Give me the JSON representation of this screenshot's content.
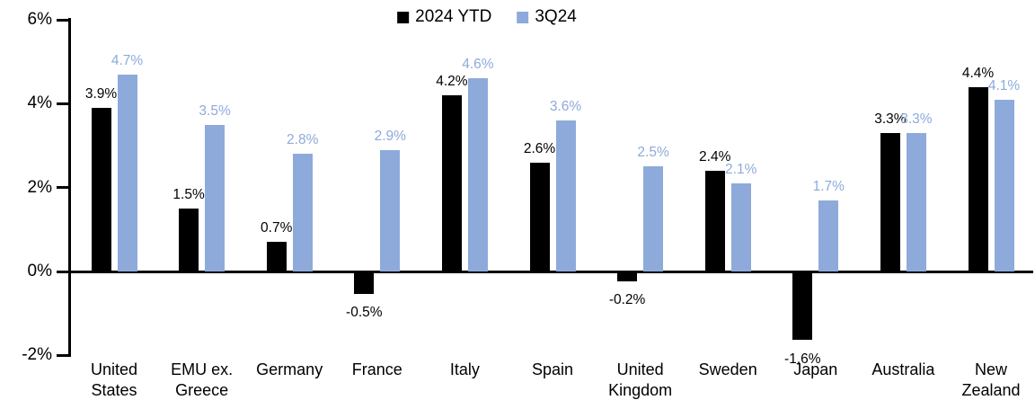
{
  "chart_data": {
    "type": "bar",
    "title": "",
    "xlabel": "",
    "ylabel": "",
    "categories": [
      "United States",
      "EMU ex. Greece",
      "Germany",
      "France",
      "Italy",
      "Spain",
      "United Kingdom",
      "Sweden",
      "Japan",
      "Australia",
      "New Zealand"
    ],
    "category_lines": [
      [
        "United",
        "States"
      ],
      [
        "EMU ex.",
        "Greece"
      ],
      [
        "Germany"
      ],
      [
        "France"
      ],
      [
        "Italy"
      ],
      [
        "Spain"
      ],
      [
        "United",
        "Kingdom"
      ],
      [
        "Sweden"
      ],
      [
        "Japan"
      ],
      [
        "Australia"
      ],
      [
        "New",
        "Zealand"
      ]
    ],
    "series": [
      {
        "name": "2024 YTD",
        "color": "#000000",
        "values": [
          3.9,
          1.5,
          0.7,
          -0.5,
          4.2,
          2.6,
          -0.2,
          2.4,
          -1.6,
          3.3,
          4.4
        ],
        "labels": [
          "3.9%",
          "1.5%",
          "0.7%",
          "-0.5%",
          "4.2%",
          "2.6%",
          "-0.2%",
          "2.4%",
          "-1.6%",
          "3.3%",
          "4.4%"
        ]
      },
      {
        "name": "3Q24",
        "color": "#8EAADB",
        "values": [
          4.7,
          3.5,
          2.8,
          2.9,
          4.6,
          3.6,
          2.5,
          2.1,
          1.7,
          3.3,
          4.1
        ],
        "labels": [
          "4.7%",
          "3.5%",
          "2.8%",
          "2.9%",
          "4.6%",
          "3.6%",
          "2.5%",
          "2.1%",
          "1.7%",
          "3.3%",
          "4.1%"
        ]
      }
    ],
    "ylim": [
      -2,
      6
    ],
    "yticks": [
      {
        "value": 6,
        "label": "6%"
      },
      {
        "value": 4,
        "label": "4%"
      },
      {
        "value": 2,
        "label": "2%"
      },
      {
        "value": 0,
        "label": "0%"
      },
      {
        "value": -2,
        "label": "-2%"
      }
    ],
    "legend_position": "top-center",
    "grid": false,
    "background": "#FFFFFF"
  }
}
